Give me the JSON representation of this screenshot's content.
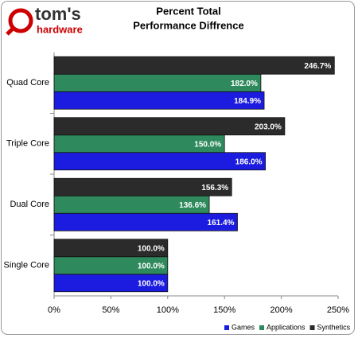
{
  "logo": {
    "name": "tom's",
    "tagline": "hardware"
  },
  "chart_data": {
    "type": "hbar",
    "title": "Percent Total",
    "subtitle": "Performance Diffrence",
    "categories": [
      "Quad Core",
      "Triple Core",
      "Dual Core",
      "Single Core"
    ],
    "series": [
      {
        "name": "Games",
        "color": "#1c1ce0",
        "values": [
          184.9,
          186.0,
          161.4,
          100.0
        ],
        "value_labels": [
          "184.9%",
          "186.0%",
          "161.4%",
          "100.0%"
        ]
      },
      {
        "name": "Applications",
        "color": "#2e8a5c",
        "values": [
          182.0,
          150.0,
          136.6,
          100.0
        ],
        "value_labels": [
          "182.0%",
          "150.0%",
          "136.6%",
          "100.0%"
        ]
      },
      {
        "name": "Synthetics",
        "color": "#2b2b2b",
        "values": [
          246.7,
          203.0,
          156.3,
          100.0
        ],
        "value_labels": [
          "246.7%",
          "203.0%",
          "156.3%",
          "100.0%"
        ]
      }
    ],
    "xlim": [
      0,
      250
    ],
    "xticks": [
      {
        "value": 0,
        "label": "0%"
      },
      {
        "value": 50,
        "label": "50%"
      },
      {
        "value": 100,
        "label": "100%"
      },
      {
        "value": 150,
        "label": "150%"
      },
      {
        "value": 200,
        "label": "200%"
      },
      {
        "value": 250,
        "label": "250%"
      }
    ],
    "grid": false,
    "legend": "bottom-right"
  }
}
